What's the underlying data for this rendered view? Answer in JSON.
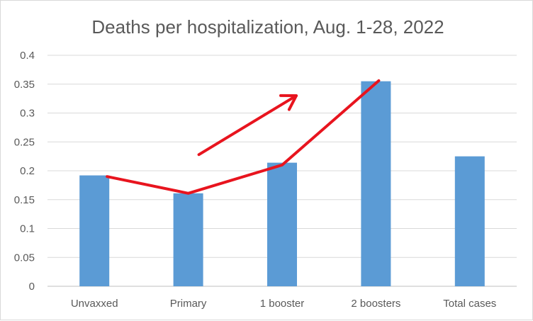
{
  "chart_data": {
    "type": "bar",
    "title": "Deaths per hospitalization, Aug. 1-28, 2022",
    "categories": [
      "Unvaxxed",
      "Primary",
      "1 booster",
      "2 boosters",
      "Total cases"
    ],
    "values": [
      0.192,
      0.161,
      0.214,
      0.355,
      0.225
    ],
    "ylim": [
      0,
      0.4
    ],
    "yticks": [
      "0",
      "0.05",
      "0.1",
      "0.15",
      "0.2",
      "0.25",
      "0.3",
      "0.35",
      "0.4"
    ],
    "grid": true,
    "legend": "none",
    "bar_color": "#5b9bd5",
    "annotations": {
      "color": "#e8141e",
      "trend_line": [
        {
          "category": "Unvaxxed",
          "y": 0.19
        },
        {
          "category": "Primary",
          "y": 0.161
        },
        {
          "category": "1 booster",
          "y": 0.21
        },
        {
          "category": "2 boosters",
          "y": 0.356
        }
      ],
      "arrow": {
        "from": {
          "category": "Primary",
          "y": 0.228
        },
        "to": {
          "category": "1 booster",
          "y": 0.33
        }
      }
    }
  }
}
